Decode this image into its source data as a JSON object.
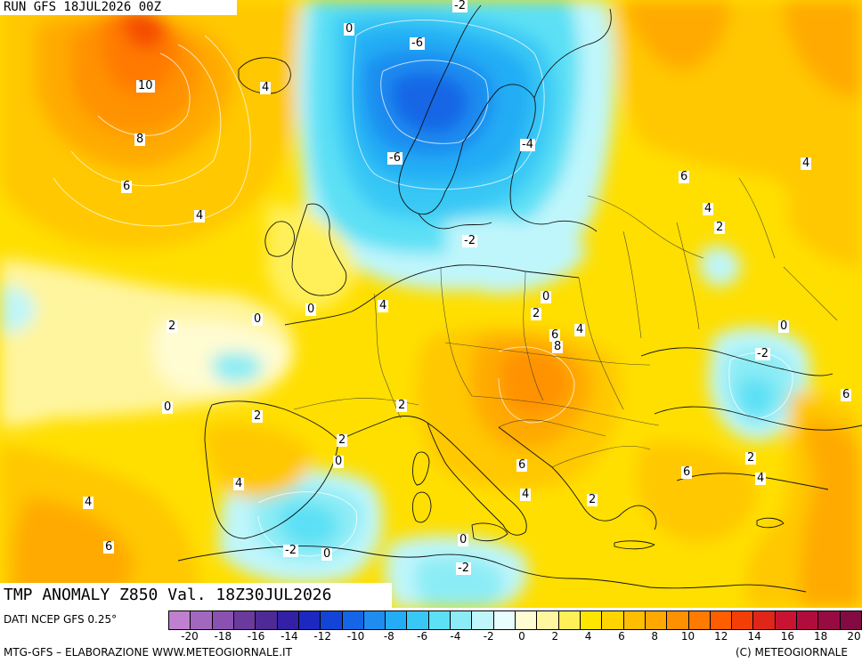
{
  "header": {
    "run_title": "RUN GFS 18JUL2026 00Z"
  },
  "map": {
    "product_title": "TMP ANOMALY Z850 Val. 18Z30JUL2026",
    "contour_labels": [
      "-2",
      "0",
      "-6",
      "10",
      "4",
      "8",
      "-6",
      "-4",
      "6",
      "4",
      "6",
      "4",
      "4",
      "2",
      "-2",
      "0",
      "2",
      "0",
      "4",
      "2",
      "6",
      "0",
      "4",
      "8",
      "-2",
      "0",
      "2",
      "6",
      "2",
      "0",
      "2",
      "4",
      "6",
      "4",
      "6",
      "4",
      "2",
      "0",
      "-2",
      "0",
      "6",
      "2",
      "4",
      "-2"
    ]
  },
  "footer": {
    "data_source": "DATI NCEP GFS 0.25°",
    "processing": "MTG-GFS – ELABORAZIONE WWW.METEOGIORNALE.IT",
    "copyright": "(C) METEOGIORNALE"
  },
  "legend": {
    "colors": [
      "#c080d0",
      "#a268c0",
      "#8a52b0",
      "#6a3a9c",
      "#4d2a95",
      "#3320a5",
      "#1c28c0",
      "#1244d6",
      "#1466e6",
      "#1f8cf0",
      "#24adf5",
      "#39c8f5",
      "#5ce0f5",
      "#8cecf5",
      "#bff6fb",
      "#e8fdfd",
      "#fffcd2",
      "#fff7a0",
      "#fff05a",
      "#ffe600",
      "#ffd400",
      "#ffbe00",
      "#ffa800",
      "#ff9000",
      "#ff7a00",
      "#ff5e00",
      "#f43e08",
      "#e02618",
      "#c81432",
      "#b00c3c",
      "#980a42",
      "#840a44"
    ],
    "ticks": [
      "-20",
      "-18",
      "-16",
      "-14",
      "-12",
      "-10",
      "-8",
      "-6",
      "-4",
      "-2",
      "0",
      "2",
      "4",
      "6",
      "8",
      "10",
      "12",
      "14",
      "16",
      "18",
      "20"
    ]
  }
}
